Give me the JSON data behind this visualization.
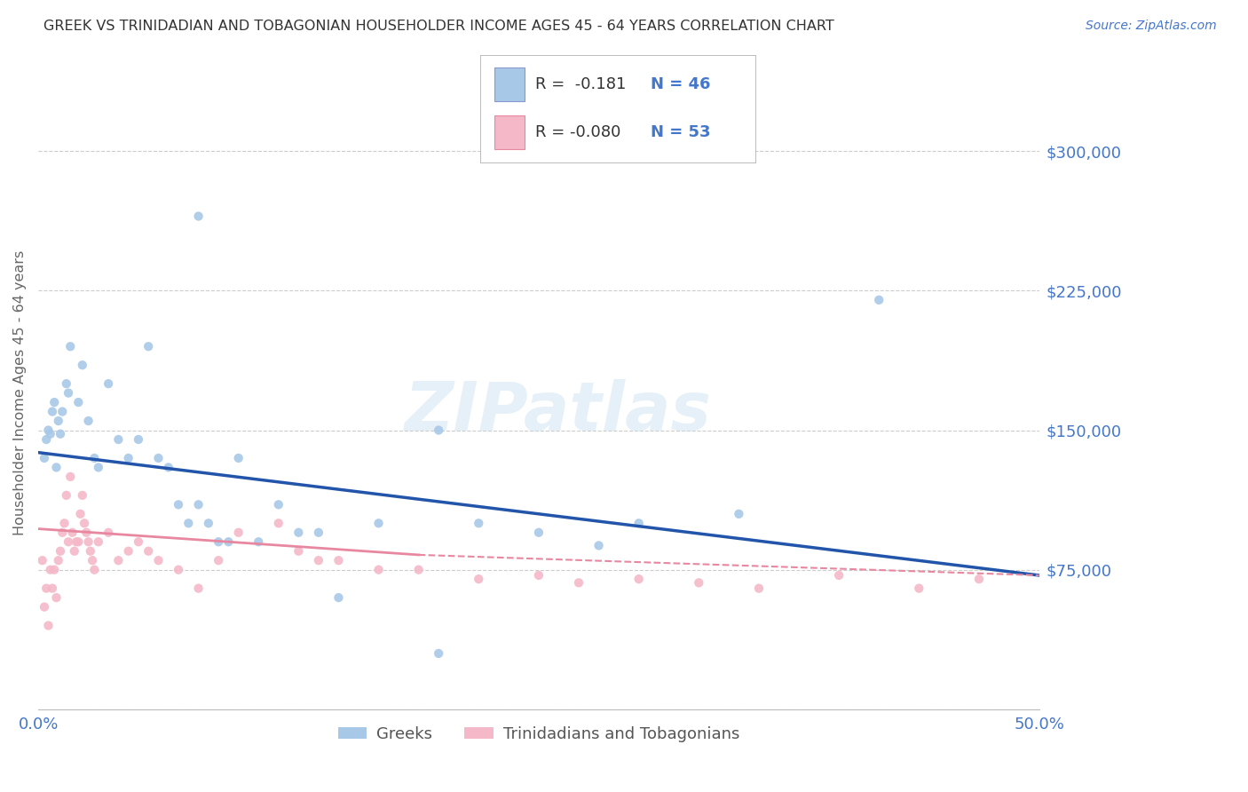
{
  "title": "GREEK VS TRINIDADIAN AND TOBAGONIAN HOUSEHOLDER INCOME AGES 45 - 64 YEARS CORRELATION CHART",
  "source": "Source: ZipAtlas.com",
  "ylabel": "Householder Income Ages 45 - 64 years",
  "xlim": [
    0.0,
    50.0
  ],
  "ylim": [
    0,
    340000
  ],
  "yticks": [
    0,
    75000,
    150000,
    225000,
    300000
  ],
  "ytick_labels": [
    "",
    "$75,000",
    "$150,000",
    "$225,000",
    "$300,000"
  ],
  "greek_color": "#a8c8e8",
  "trini_color": "#f4b8c8",
  "greek_line_color": "#2255aa",
  "trini_line_color": "#e888a0",
  "label_color": "#4477cc",
  "title_color": "#333333",
  "source_color": "#4477cc",
  "grid_color": "#cccccc",
  "watermark": "ZIPatlas",
  "background_color": "#ffffff",
  "greek_r": "R =  -0.181",
  "greek_n": "N = 46",
  "trini_r": "R = -0.080",
  "trini_n": "N = 53",
  "greek_trendline": [
    0.0,
    50.0,
    138000,
    72000
  ],
  "trini_trendline": [
    0.0,
    19.0,
    97000,
    83000
  ],
  "greek_dots_x": [
    0.3,
    0.4,
    0.5,
    0.6,
    0.7,
    0.8,
    0.9,
    1.0,
    1.1,
    1.2,
    1.4,
    1.5,
    1.6,
    2.0,
    2.2,
    2.5,
    2.8,
    3.0,
    3.5,
    4.0,
    4.5,
    5.0,
    5.5,
    6.0,
    6.5,
    7.0,
    7.5,
    8.0,
    8.5,
    9.0,
    9.5,
    10.0,
    11.0,
    12.0,
    13.0,
    14.0,
    15.0,
    17.0,
    20.0,
    22.0,
    25.0,
    28.0,
    30.0,
    35.0,
    42.0,
    20.0
  ],
  "greek_dots_y": [
    135000,
    145000,
    150000,
    148000,
    160000,
    165000,
    130000,
    155000,
    148000,
    160000,
    175000,
    170000,
    195000,
    165000,
    185000,
    155000,
    135000,
    130000,
    175000,
    145000,
    135000,
    145000,
    195000,
    135000,
    130000,
    110000,
    100000,
    110000,
    100000,
    90000,
    90000,
    135000,
    90000,
    110000,
    95000,
    95000,
    60000,
    100000,
    150000,
    100000,
    95000,
    88000,
    100000,
    105000,
    220000,
    30000
  ],
  "greek_dots_high_x": [
    8.0
  ],
  "greek_dots_high_y": [
    265000
  ],
  "trini_dots_x": [
    0.2,
    0.3,
    0.4,
    0.5,
    0.6,
    0.7,
    0.8,
    0.9,
    1.0,
    1.1,
    1.2,
    1.3,
    1.4,
    1.5,
    1.6,
    1.7,
    1.8,
    1.9,
    2.0,
    2.1,
    2.2,
    2.3,
    2.4,
    2.5,
    2.6,
    2.7,
    2.8,
    3.0,
    3.5,
    4.0,
    4.5,
    5.0,
    5.5,
    6.0,
    7.0,
    8.0,
    9.0,
    10.0,
    12.0,
    13.0,
    14.0,
    15.0,
    17.0,
    19.0,
    22.0,
    25.0,
    27.0,
    30.0,
    33.0,
    36.0,
    40.0,
    44.0,
    47.0
  ],
  "trini_dots_y": [
    80000,
    55000,
    65000,
    45000,
    75000,
    65000,
    75000,
    60000,
    80000,
    85000,
    95000,
    100000,
    115000,
    90000,
    125000,
    95000,
    85000,
    90000,
    90000,
    105000,
    115000,
    100000,
    95000,
    90000,
    85000,
    80000,
    75000,
    90000,
    95000,
    80000,
    85000,
    90000,
    85000,
    80000,
    75000,
    65000,
    80000,
    95000,
    100000,
    85000,
    80000,
    80000,
    75000,
    75000,
    70000,
    72000,
    68000,
    70000,
    68000,
    65000,
    72000,
    65000,
    70000
  ]
}
